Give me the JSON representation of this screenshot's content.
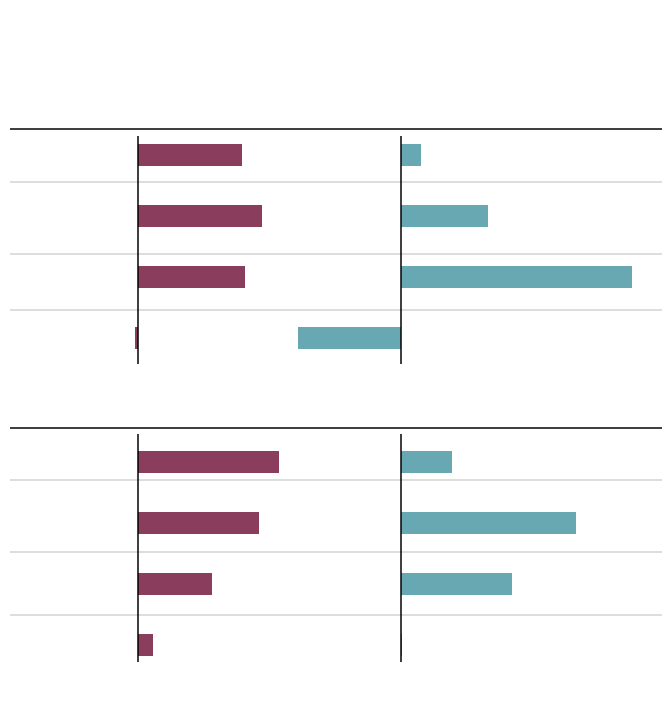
{
  "chart_data": [
    {
      "type": "bar",
      "orientation": "horizontal",
      "categories": [
        null,
        null,
        null,
        null
      ],
      "series": [
        {
          "color": "#8b3d5e",
          "values": [
            10.4,
            12.4,
            10.7,
            -0.3
          ],
          "xlim": [
            -12.8,
            52.4
          ]
        },
        {
          "color": "#68a8b2",
          "values": [
            2.0,
            8.7,
            23.1,
            -10.3
          ],
          "xlim": [
            -39.1,
            26.1
          ]
        }
      ]
    },
    {
      "type": "bar",
      "orientation": "horizontal",
      "categories": [
        null,
        null,
        null,
        null
      ],
      "series": [
        {
          "color": "#8b3d5e",
          "values": [
            14.1,
            12.1,
            7.4,
            1.5
          ],
          "xlim": [
            -12.8,
            52.4
          ]
        },
        {
          "color": "#68a8b2",
          "values": [
            5.1,
            17.5,
            11.1,
            0.1
          ],
          "xlim": [
            -39.1,
            26.1
          ]
        }
      ]
    }
  ]
}
